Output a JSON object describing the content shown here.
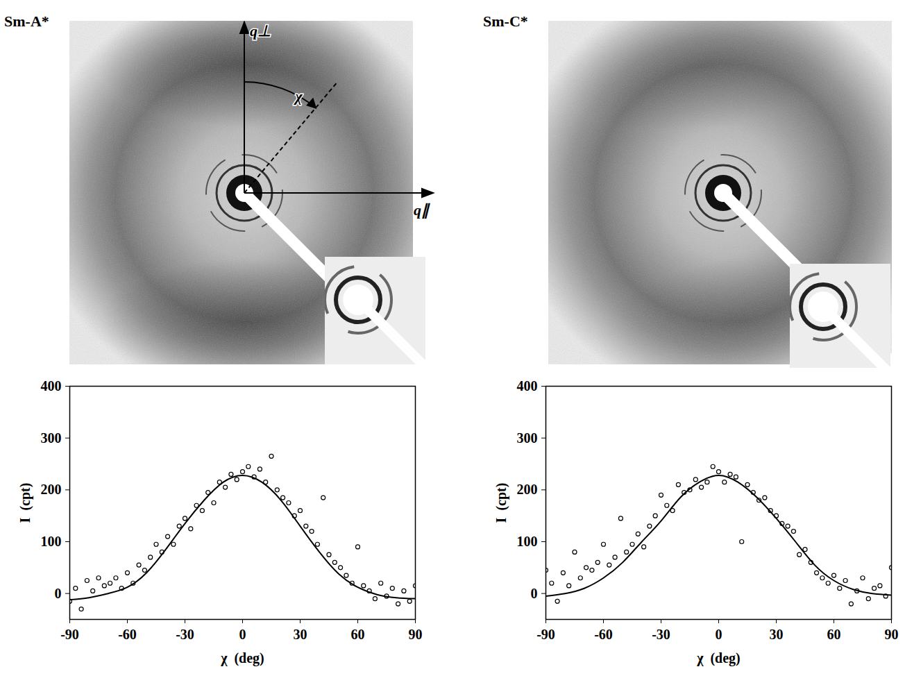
{
  "images": [
    {
      "title": "Sm-A*",
      "q_perp": "q⊥",
      "q_par": "q∥",
      "angle": "χ"
    },
    {
      "title": "Sm-C*"
    }
  ],
  "chart_data": [
    {
      "type": "scatter",
      "x_label": "χ  (deg)",
      "y_label": "I  (cpt)",
      "xlim": [
        -90,
        90
      ],
      "xticks": [
        -90,
        -60,
        -30,
        0,
        30,
        60,
        90
      ],
      "ylim": [
        -50,
        400
      ],
      "yticks": [
        0,
        100,
        200,
        300,
        400
      ],
      "grid": false,
      "series": [
        {
          "type": "scatter",
          "marker": "circle",
          "color": "#000000",
          "x": [
            -90,
            -87,
            -84,
            -81,
            -78,
            -75,
            -72,
            -69,
            -66,
            -63,
            -60,
            -57,
            -54,
            -51,
            -48,
            -45,
            -42,
            -39,
            -36,
            -33,
            -30,
            -27,
            -24,
            -21,
            -18,
            -15,
            -12,
            -9,
            -6,
            -3,
            0,
            3,
            6,
            9,
            12,
            15,
            18,
            21,
            24,
            27,
            30,
            33,
            36,
            39,
            42,
            45,
            48,
            51,
            54,
            57,
            60,
            63,
            66,
            69,
            72,
            75,
            78,
            81,
            84,
            87,
            90
          ],
          "values": [
            -15,
            10,
            -30,
            25,
            5,
            30,
            15,
            20,
            30,
            10,
            40,
            20,
            55,
            45,
            70,
            95,
            80,
            110,
            95,
            130,
            145,
            125,
            170,
            160,
            195,
            175,
            215,
            205,
            230,
            220,
            235,
            245,
            225,
            240,
            215,
            265,
            200,
            185,
            175,
            150,
            160,
            130,
            120,
            95,
            185,
            75,
            60,
            50,
            35,
            20,
            90,
            15,
            5,
            -10,
            20,
            -5,
            10,
            -20,
            5,
            -15,
            15
          ]
        },
        {
          "type": "line",
          "line_style": "solid",
          "color": "#000000",
          "x": [
            -90,
            -80,
            -70,
            -60,
            -50,
            -40,
            -30,
            -20,
            -10,
            0,
            10,
            20,
            30,
            40,
            50,
            60,
            70,
            80,
            90
          ],
          "values": [
            -12,
            -8,
            0,
            12,
            40,
            85,
            135,
            180,
            215,
            228,
            215,
            180,
            130,
            80,
            38,
            12,
            -2,
            -8,
            -10
          ]
        }
      ]
    },
    {
      "type": "scatter",
      "x_label": "χ  (deg)",
      "y_label": "I  (cpt)",
      "xlim": [
        -90,
        90
      ],
      "xticks": [
        -90,
        -60,
        -30,
        0,
        30,
        60,
        90
      ],
      "ylim": [
        -50,
        400
      ],
      "yticks": [
        0,
        100,
        200,
        300,
        400
      ],
      "grid": false,
      "series": [
        {
          "type": "scatter",
          "marker": "circle",
          "color": "#000000",
          "x": [
            -90,
            -87,
            -84,
            -81,
            -78,
            -75,
            -72,
            -69,
            -66,
            -63,
            -60,
            -57,
            -54,
            -51,
            -48,
            -45,
            -42,
            -39,
            -36,
            -33,
            -30,
            -27,
            -24,
            -21,
            -18,
            -15,
            -12,
            -9,
            -6,
            -3,
            0,
            3,
            6,
            9,
            12,
            15,
            18,
            21,
            24,
            27,
            30,
            33,
            36,
            39,
            42,
            45,
            48,
            51,
            54,
            57,
            60,
            63,
            66,
            69,
            72,
            75,
            78,
            81,
            84,
            87,
            90
          ],
          "values": [
            45,
            20,
            -15,
            40,
            15,
            80,
            30,
            50,
            45,
            60,
            95,
            55,
            70,
            145,
            80,
            95,
            115,
            90,
            130,
            150,
            190,
            170,
            160,
            210,
            195,
            200,
            220,
            205,
            215,
            245,
            235,
            215,
            230,
            225,
            100,
            210,
            195,
            180,
            185,
            160,
            150,
            135,
            130,
            120,
            75,
            85,
            60,
            40,
            30,
            20,
            35,
            10,
            25,
            -20,
            5,
            30,
            -10,
            10,
            15,
            -5,
            50
          ]
        },
        {
          "type": "line",
          "line_style": "solid",
          "color": "#000000",
          "x": [
            -90,
            -80,
            -70,
            -60,
            -50,
            -40,
            -30,
            -20,
            -10,
            0,
            10,
            20,
            30,
            40,
            50,
            60,
            70,
            80,
            90
          ],
          "values": [
            -5,
            0,
            10,
            30,
            60,
            100,
            140,
            185,
            215,
            228,
            215,
            185,
            145,
            100,
            55,
            25,
            8,
            0,
            -3
          ]
        }
      ]
    }
  ]
}
